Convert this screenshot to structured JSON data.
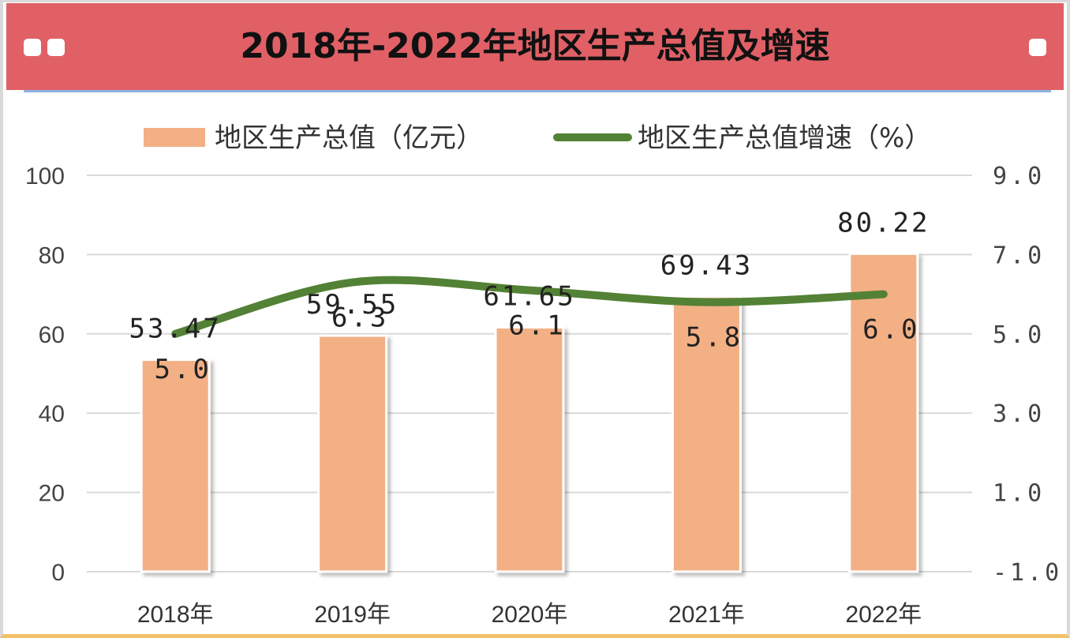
{
  "title": "2018年-2022年地区生产总值及增速",
  "colors": {
    "header": "#e06066",
    "bar": "#f3b085",
    "line": "#538135",
    "grid": "#d9d9d9"
  },
  "chart_data": {
    "type": "bar+line",
    "categories": [
      "2018年",
      "2019年",
      "2020年",
      "2021年",
      "2022年"
    ],
    "series": [
      {
        "name": "地区生产总值（亿元）",
        "type": "bar",
        "axis": "left",
        "values": [
          53.47,
          59.55,
          61.65,
          69.43,
          80.22
        ],
        "labels": [
          "53.47",
          "59.55",
          "61.65",
          "69.43",
          "80.22"
        ]
      },
      {
        "name": "地区生产总值增速（%）",
        "type": "line",
        "axis": "right",
        "values": [
          5.0,
          6.3,
          6.1,
          5.8,
          6.0
        ],
        "labels": [
          "5.0",
          "6.3",
          "6.1",
          "5.8",
          "6.0"
        ]
      }
    ],
    "y_left": {
      "min": 0,
      "max": 100,
      "ticks": [
        "0",
        "20",
        "40",
        "60",
        "80",
        "100"
      ]
    },
    "y_right": {
      "min": -1.0,
      "max": 9.0,
      "ticks": [
        "-1.0",
        "1.0",
        "3.0",
        "5.0",
        "7.0",
        "9.0"
      ]
    },
    "grid": true,
    "legend": "top"
  }
}
